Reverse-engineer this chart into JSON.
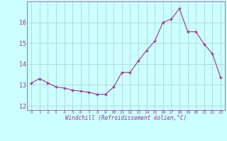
{
  "x": [
    0,
    1,
    2,
    3,
    4,
    5,
    6,
    7,
    8,
    9,
    10,
    11,
    12,
    13,
    14,
    15,
    16,
    17,
    18,
    19,
    20,
    21,
    22,
    23
  ],
  "y": [
    13.1,
    13.3,
    13.1,
    12.9,
    12.85,
    12.75,
    12.7,
    12.65,
    12.55,
    12.55,
    12.9,
    13.6,
    13.6,
    14.15,
    14.65,
    15.1,
    16.0,
    16.15,
    16.65,
    15.55,
    15.55,
    14.95,
    14.5,
    13.35
  ],
  "line_color": "#993399",
  "bg_color": "#ccffff",
  "grid_color": "#aacccc",
  "text_color": "#993399",
  "ylim": [
    11.8,
    17.0
  ],
  "yticks": [
    12,
    13,
    14,
    15,
    16
  ],
  "xlabel": "Windchill (Refroidissement éolien,°C)"
}
